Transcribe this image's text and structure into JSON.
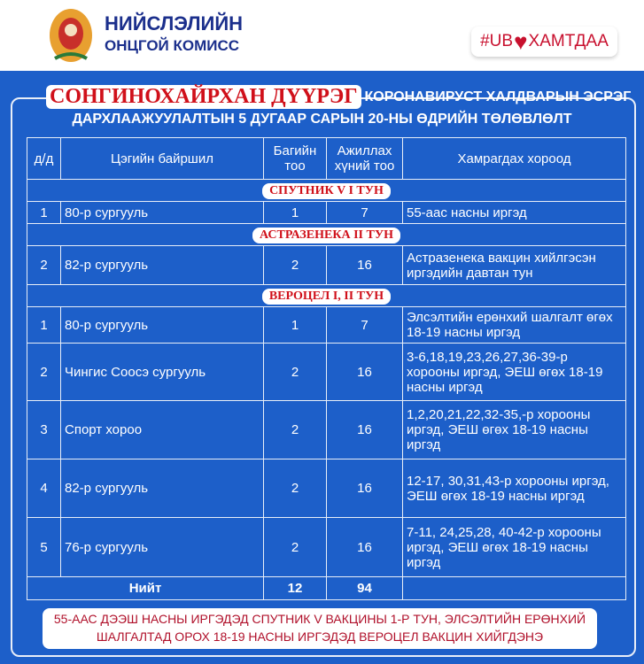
{
  "header": {
    "org_line1": "НИЙСЛЭЛИЙН",
    "org_line2": "ОНЦГОЙ КОМИСС",
    "hashtag_left": "#UB",
    "hashtag_right": "ХАМТДАА"
  },
  "title": {
    "district": "СОНГИНОХАЙРХАН ДҮҮРЭГ",
    "line1": "КОРОНАВИРУСТ ХАЛДВАРЫН ЭСРЭГ",
    "line2": "ДАРХЛААЖУУЛАЛТЫН 5 ДУГААР САРЫН 20-НЫ ӨДРИЙН ТӨЛӨВЛӨЛТ"
  },
  "table": {
    "headers": [
      "д/д",
      "Цэгийн байршил",
      "Багийн тоо",
      "Ажиллах хүний тоо",
      "Хамрагдах хороод"
    ],
    "sections": [
      {
        "title": "СПУТНИК V I ТУН",
        "rows": [
          {
            "no": "1",
            "place": "80-р сургууль",
            "teams": "1",
            "staff": "7",
            "coverage": "55-аас насны иргэд"
          }
        ]
      },
      {
        "title": "АСТРАЗЕНЕКА II ТУН",
        "rows": [
          {
            "no": "2",
            "place": "82-р сургууль",
            "teams": "2",
            "staff": "16",
            "coverage": "Астразенека вакцин хийлгэсэн иргэдийн давтан тун"
          }
        ]
      },
      {
        "title": "ВЕРОЦЕЛ I, II ТУН",
        "rows": [
          {
            "no": "1",
            "place": "80-р сургууль",
            "teams": "1",
            "staff": "7",
            "coverage": "Элсэлтийн ерөнхий шалгалт өгөх 18-19 насны иргэд"
          },
          {
            "no": "2",
            "place": "Чингис Соосэ сургууль",
            "teams": "2",
            "staff": "16",
            "coverage": "3-6,18,19,23,26,27,36-39-р хорооны иргэд, ЭЕШ өгөх 18-19 насны иргэд"
          },
          {
            "no": "3",
            "place": "Спорт хороо",
            "teams": "2",
            "staff": "16",
            "coverage": "1,2,20,21,22,32-35,-р хорооны иргэд, ЭЕШ өгөх 18-19 насны иргэд"
          },
          {
            "no": "4",
            "place": "82-р сургууль",
            "teams": "2",
            "staff": "16",
            "coverage": "12-17, 30,31,43-р хорооны иргэд, ЭЕШ өгөх 18-19 насны иргэд"
          },
          {
            "no": "5",
            "place": "76-р сургууль",
            "teams": "2",
            "staff": "16",
            "coverage": "7-11, 24,25,28, 40-42-р хорооны иргэд, ЭЕШ өгөх 18-19 насны иргэд"
          }
        ]
      }
    ],
    "total": {
      "label": "Нийт",
      "teams": "12",
      "staff": "94"
    }
  },
  "note": {
    "line1": "55-ААС ДЭЭШ НАСНЫ ИРГЭДЭД СПУТНИК V ВАКЦИНЫ 1-Р ТУН, ЭЛСЭЛТИЙН ЕРӨНХИЙ",
    "line2": "ШАЛГАЛТАД ОРОХ 18-19 НАСНЫ  ИРГЭДЭД ВЕРОЦЕЛ ВАКЦИН ХИЙГДЭНЭ"
  },
  "colors": {
    "background": "#1d5fc9",
    "accent_red": "#d0101a",
    "org_blue": "#1b2f8c"
  }
}
